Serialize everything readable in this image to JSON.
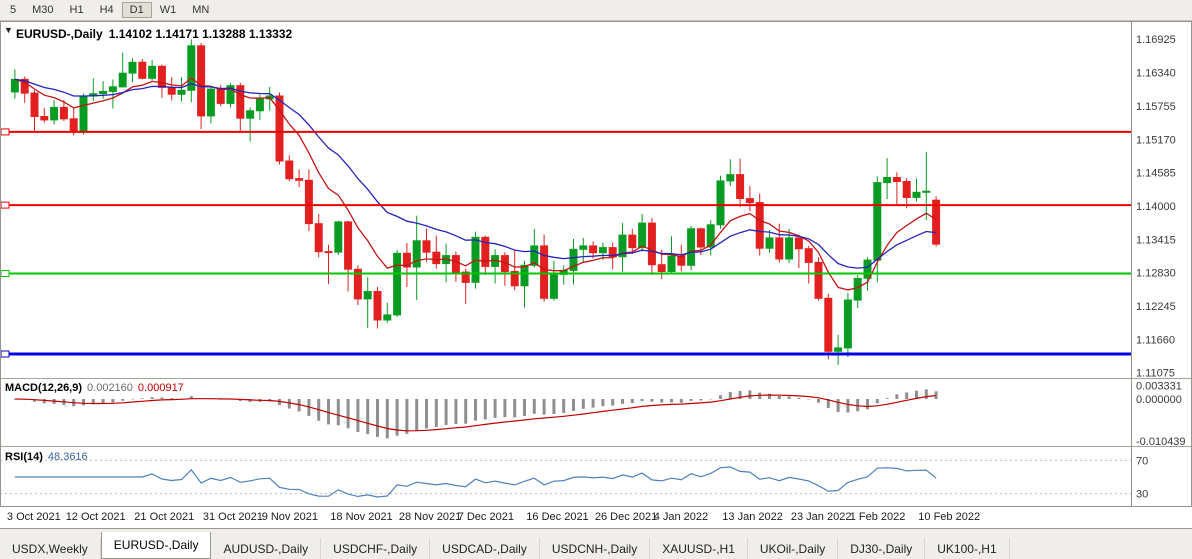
{
  "toolbar": {
    "periods": [
      "5",
      "M30",
      "H1",
      "H4",
      "D1",
      "W1",
      "MN"
    ],
    "active_period": "D1"
  },
  "chart": {
    "symbol_title": "EURUSD-,Daily",
    "ohlc_display": "1.14102 1.14171 1.13288 1.13332"
  },
  "chart_data": {
    "type": "candlestick",
    "symbol": "EURUSD-",
    "timeframe": "Daily",
    "title": "EURUSD-,Daily",
    "ohlc_current": {
      "open": 1.14102,
      "high": 1.14171,
      "low": 1.13288,
      "close": 1.13332
    },
    "price_scale": {
      "max": 1.1721,
      "min": 1.11
    },
    "price_axis_labels": [
      "1.16925",
      "1.16340",
      "1.15755",
      "1.15170",
      "1.14585",
      "1.14000",
      "1.13415",
      "1.12830",
      "1.12245",
      "1.11660",
      "1.11075"
    ],
    "date_labels": [
      {
        "text": "3 Oct 2021",
        "bar": 0
      },
      {
        "text": "12 Oct 2021",
        "bar": 6
      },
      {
        "text": "21 Oct 2021",
        "bar": 13
      },
      {
        "text": "31 Oct 2021",
        "bar": 20
      },
      {
        "text": "9 Nov 2021",
        "bar": 26
      },
      {
        "text": "18 Nov 2021",
        "bar": 33
      },
      {
        "text": "28 Nov 2021",
        "bar": 40
      },
      {
        "text": "7 Dec 2021",
        "bar": 46
      },
      {
        "text": "16 Dec 2021",
        "bar": 53
      },
      {
        "text": "26 Dec 2021",
        "bar": 60
      },
      {
        "text": "4 Jan 2022",
        "bar": 66
      },
      {
        "text": "13 Jan 2022",
        "bar": 73
      },
      {
        "text": "23 Jan 2022",
        "bar": 80
      },
      {
        "text": "1 Feb 2022",
        "bar": 86
      },
      {
        "text": "10 Feb 2022",
        "bar": 93
      }
    ],
    "candles": [
      [
        1.16,
        1.164,
        1.1588,
        1.1622
      ],
      [
        1.1622,
        1.1627,
        1.1581,
        1.1598
      ],
      [
        1.1598,
        1.1603,
        1.1529,
        1.1557
      ],
      [
        1.1557,
        1.1572,
        1.1546,
        1.1551
      ],
      [
        1.1551,
        1.1586,
        1.1543,
        1.1573
      ],
      [
        1.1573,
        1.1586,
        1.1549,
        1.1553
      ],
      [
        1.1553,
        1.1572,
        1.1524,
        1.153
      ],
      [
        1.153,
        1.1597,
        1.1525,
        1.1593
      ],
      [
        1.1593,
        1.1624,
        1.1584,
        1.1597
      ],
      [
        1.1597,
        1.1619,
        1.1588,
        1.1601
      ],
      [
        1.1601,
        1.1622,
        1.1571,
        1.1609
      ],
      [
        1.1609,
        1.1669,
        1.1608,
        1.1633
      ],
      [
        1.1633,
        1.1659,
        1.1617,
        1.1652
      ],
      [
        1.1652,
        1.1658,
        1.1622,
        1.1624
      ],
      [
        1.1624,
        1.1656,
        1.162,
        1.1645
      ],
      [
        1.1645,
        1.1648,
        1.159,
        1.1608
      ],
      [
        1.1608,
        1.1626,
        1.1585,
        1.1596
      ],
      [
        1.1596,
        1.1626,
        1.1584,
        1.1603
      ],
      [
        1.1603,
        1.1692,
        1.1582,
        1.1681
      ],
      [
        1.1681,
        1.1686,
        1.1535,
        1.1558
      ],
      [
        1.1558,
        1.1609,
        1.1545,
        1.1605
      ],
      [
        1.1605,
        1.1612,
        1.1575,
        1.158
      ],
      [
        1.158,
        1.1616,
        1.1573,
        1.1611
      ],
      [
        1.1611,
        1.1616,
        1.1528,
        1.1554
      ],
      [
        1.1554,
        1.1573,
        1.1513,
        1.1567
      ],
      [
        1.1567,
        1.1596,
        1.1551,
        1.1588
      ],
      [
        1.1588,
        1.1609,
        1.1567,
        1.1593
      ],
      [
        1.1593,
        1.1599,
        1.1473,
        1.1479
      ],
      [
        1.1479,
        1.1489,
        1.1443,
        1.1448
      ],
      [
        1.1448,
        1.1464,
        1.1433,
        1.1445
      ],
      [
        1.1445,
        1.1464,
        1.1356,
        1.1369
      ],
      [
        1.1369,
        1.1386,
        1.131,
        1.132
      ],
      [
        1.132,
        1.1332,
        1.1263,
        1.1319
      ],
      [
        1.1319,
        1.1374,
        1.1314,
        1.1372
      ],
      [
        1.1372,
        1.1374,
        1.125,
        1.1289
      ],
      [
        1.1289,
        1.1296,
        1.1226,
        1.1237
      ],
      [
        1.1237,
        1.1275,
        1.1186,
        1.125
      ],
      [
        1.125,
        1.1258,
        1.1185,
        1.12
      ],
      [
        1.12,
        1.123,
        1.1195,
        1.1209
      ],
      [
        1.1209,
        1.1323,
        1.1205,
        1.1317
      ],
      [
        1.1317,
        1.1335,
        1.1258,
        1.1293
      ],
      [
        1.1293,
        1.1383,
        1.1235,
        1.1339
      ],
      [
        1.1339,
        1.136,
        1.1302,
        1.1319
      ],
      [
        1.1319,
        1.1348,
        1.129,
        1.1299
      ],
      [
        1.1299,
        1.1334,
        1.1266,
        1.1313
      ],
      [
        1.1313,
        1.132,
        1.1267,
        1.1284
      ],
      [
        1.1284,
        1.129,
        1.1228,
        1.1266
      ],
      [
        1.1266,
        1.1355,
        1.1255,
        1.1345
      ],
      [
        1.1345,
        1.1348,
        1.1279,
        1.1294
      ],
      [
        1.1294,
        1.1324,
        1.1264,
        1.1313
      ],
      [
        1.1313,
        1.1319,
        1.126,
        1.1285
      ],
      [
        1.1285,
        1.1322,
        1.1252,
        1.126
      ],
      [
        1.126,
        1.1304,
        1.1222,
        1.1296
      ],
      [
        1.1296,
        1.136,
        1.1292,
        1.133
      ],
      [
        1.133,
        1.135,
        1.1232,
        1.1238
      ],
      [
        1.1238,
        1.1304,
        1.1234,
        1.128
      ],
      [
        1.128,
        1.1296,
        1.1262,
        1.1287
      ],
      [
        1.1287,
        1.1342,
        1.1262,
        1.1324
      ],
      [
        1.1324,
        1.1344,
        1.13,
        1.133
      ],
      [
        1.133,
        1.1338,
        1.1308,
        1.1318
      ],
      [
        1.1318,
        1.1336,
        1.1305,
        1.1327
      ],
      [
        1.1327,
        1.1336,
        1.1289,
        1.1311
      ],
      [
        1.1311,
        1.137,
        1.1285,
        1.1349
      ],
      [
        1.1349,
        1.136,
        1.1316,
        1.1327
      ],
      [
        1.1327,
        1.1386,
        1.132,
        1.137
      ],
      [
        1.137,
        1.1379,
        1.1279,
        1.1297
      ],
      [
        1.1297,
        1.1323,
        1.1272,
        1.1285
      ],
      [
        1.1285,
        1.1347,
        1.128,
        1.1312
      ],
      [
        1.1312,
        1.1332,
        1.1285,
        1.1296
      ],
      [
        1.1296,
        1.1365,
        1.1287,
        1.136
      ],
      [
        1.136,
        1.1362,
        1.1314,
        1.1328
      ],
      [
        1.1328,
        1.1375,
        1.1313,
        1.1367
      ],
      [
        1.1367,
        1.1453,
        1.136,
        1.1444
      ],
      [
        1.1444,
        1.1482,
        1.1435,
        1.1455
      ],
      [
        1.1455,
        1.1483,
        1.1398,
        1.1413
      ],
      [
        1.1413,
        1.1435,
        1.1391,
        1.1406
      ],
      [
        1.1406,
        1.1422,
        1.1313,
        1.1326
      ],
      [
        1.1326,
        1.1358,
        1.1318,
        1.1344
      ],
      [
        1.1344,
        1.1369,
        1.1301,
        1.1307
      ],
      [
        1.1307,
        1.136,
        1.13,
        1.1344
      ],
      [
        1.1344,
        1.1349,
        1.1291,
        1.1325
      ],
      [
        1.1325,
        1.133,
        1.1264,
        1.1301
      ],
      [
        1.1301,
        1.131,
        1.1234,
        1.1238
      ],
      [
        1.1238,
        1.1246,
        1.1131,
        1.1145
      ],
      [
        1.1145,
        1.1174,
        1.1121,
        1.1151
      ],
      [
        1.1151,
        1.1248,
        1.1135,
        1.1235
      ],
      [
        1.1235,
        1.1279,
        1.1221,
        1.1273
      ],
      [
        1.1273,
        1.131,
        1.1251,
        1.1305
      ],
      [
        1.1305,
        1.1452,
        1.1266,
        1.1441
      ],
      [
        1.1441,
        1.1484,
        1.1412,
        1.145
      ],
      [
        1.145,
        1.1459,
        1.14,
        1.1443
      ],
      [
        1.1443,
        1.1449,
        1.1396,
        1.1415
      ],
      [
        1.1415,
        1.1448,
        1.1408,
        1.1424
      ],
      [
        1.1424,
        1.1495,
        1.1375,
        1.1426
      ],
      [
        1.14102,
        1.14171,
        1.13288,
        1.13332
      ]
    ],
    "colors": {
      "up": "#0a9c22",
      "down": "#e32020",
      "background": "#ffffff",
      "axis_text": "#3a3a3a"
    },
    "moving_averages": [
      {
        "name": "ma-fast",
        "period": 9,
        "color": "#c41414"
      },
      {
        "name": "ma-slow",
        "period": 20,
        "color": "#2424bc"
      }
    ],
    "levels": [
      {
        "value": 1.153,
        "label": "1.15300",
        "color": "#ee0000",
        "width": 2
      },
      {
        "value": 1.14016,
        "label": "1.14016",
        "color": "#ee0000",
        "width": 2
      },
      {
        "value": 1.12816,
        "label": "1.12816",
        "color": "#00c400",
        "width": 2
      },
      {
        "value": 1.11404,
        "label": "1.11404",
        "color": "#0000e0",
        "width": 3
      }
    ],
    "current_price": {
      "value": 1.13332,
      "label": "1.13332",
      "bg": "#000000"
    },
    "indicators": {
      "macd": {
        "label": "MACD(12,26,9)",
        "value_main": "0.002160",
        "value_signal": "0.000917",
        "fast": 12,
        "slow": 26,
        "signal": 9,
        "scale": {
          "max": 0.005,
          "min": -0.0115
        },
        "axis_labels": [
          {
            "text": "0.003331",
            "value": 0.003331
          },
          {
            "text": "0.000000",
            "value": 0
          },
          {
            "text": "-0.010439",
            "value": -0.010439
          }
        ],
        "histogram_color": "#8f8f8f",
        "signal_color": "#c00000"
      },
      "rsi": {
        "label": "RSI(14)",
        "value": "48.3616",
        "period": 14,
        "scale": {
          "max": 85,
          "min": 15
        },
        "levels": [
          70,
          30
        ],
        "axis_labels": [
          "70",
          "30"
        ],
        "line_color": "#4f81bd",
        "level_color": "#bdbdbd"
      }
    }
  },
  "tabs": {
    "items": [
      "USDX,Weekly",
      "EURUSD-,Daily",
      "AUDUSD-,Daily",
      "USDCHF-,Daily",
      "USDCAD-,Daily",
      "USDCNH-,Daily",
      "XAUUSD-,H1",
      "UKOil-,Daily",
      "DJ30-,Daily",
      "UK100-,H1"
    ],
    "active_index": 1
  }
}
